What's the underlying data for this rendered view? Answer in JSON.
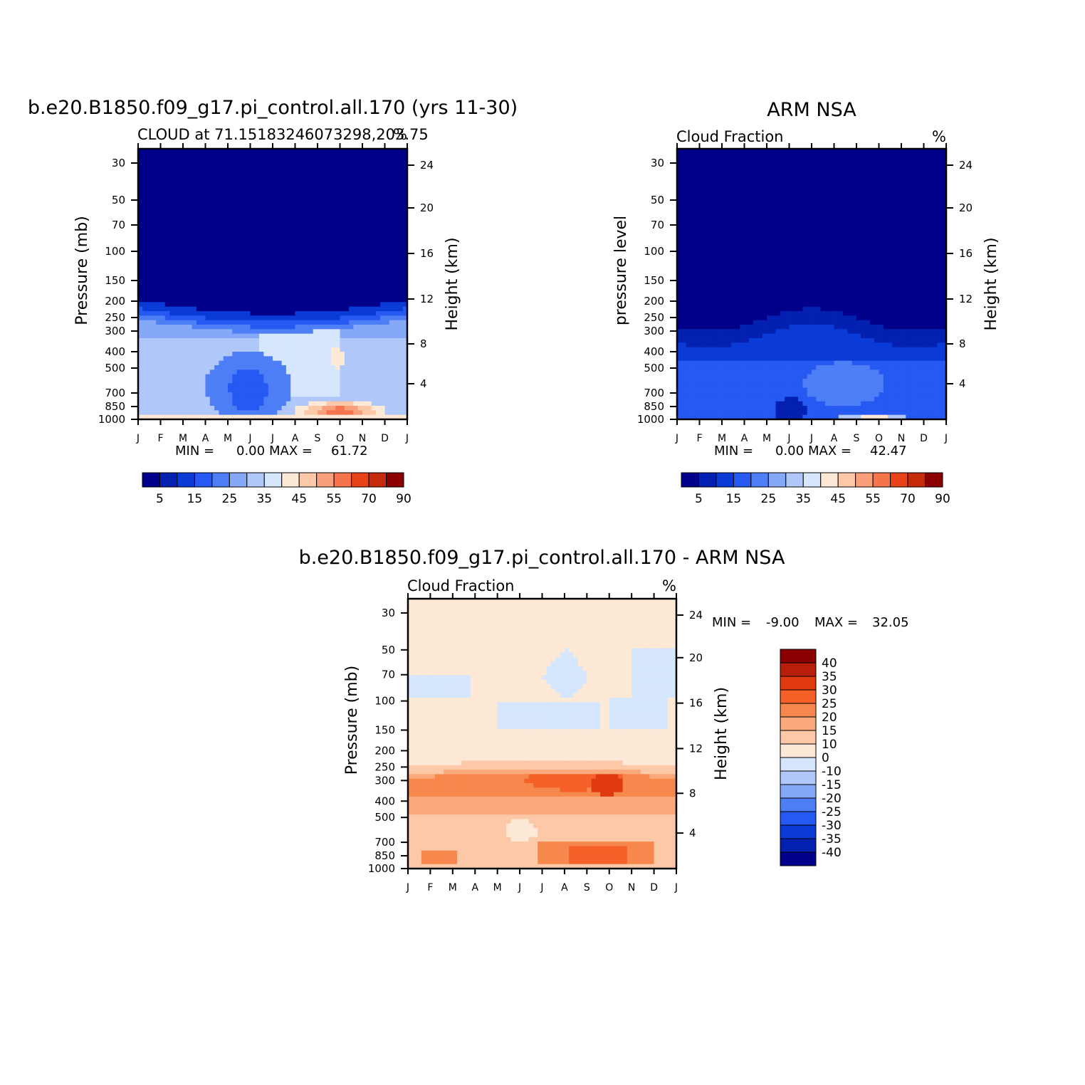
{
  "chart_data": [
    {
      "type": "heatmap",
      "title": "b.e20.B1850.f09_g17.pi_control.all.170 (yrs 11-30)",
      "subtitle_left": "CLOUD at 71.15183246073298,203.75",
      "subtitle_right": "%",
      "ylabel": "Pressure (mb)",
      "y2label": "Height (km)",
      "x": [
        "J",
        "F",
        "M",
        "A",
        "M",
        "J",
        "J",
        "A",
        "S",
        "O",
        "N",
        "D",
        "J"
      ],
      "y_ticks": [
        "30",
        "50",
        "70",
        "100",
        "150",
        "200",
        "250",
        "300",
        "400",
        "500",
        "700",
        "850",
        "1000"
      ],
      "y2_ticks": [
        "24",
        "20",
        "16",
        "12",
        "8",
        "4"
      ],
      "min_label": "MIN =",
      "min_value": "0.00",
      "max_label": "MAX =",
      "max_value": "61.72",
      "colorbar_labels": [
        "5",
        "15",
        "25",
        "35",
        "45",
        "55",
        "70",
        "90"
      ],
      "zlim": [
        0,
        100
      ]
    },
    {
      "type": "heatmap",
      "title": "ARM NSA",
      "subtitle_left": "Cloud Fraction",
      "subtitle_right": "%",
      "ylabel": "pressure level",
      "y2label": "Height (km)",
      "x": [
        "J",
        "F",
        "M",
        "A",
        "M",
        "J",
        "J",
        "A",
        "S",
        "O",
        "N",
        "D",
        "J"
      ],
      "y_ticks": [
        "30",
        "50",
        "70",
        "100",
        "150",
        "200",
        "250",
        "300",
        "400",
        "500",
        "700",
        "850",
        "1000"
      ],
      "y2_ticks": [
        "24",
        "20",
        "16",
        "12",
        "8",
        "4"
      ],
      "min_label": "MIN =",
      "min_value": "0.00",
      "max_label": "MAX =",
      "max_value": "42.47",
      "colorbar_labels": [
        "5",
        "15",
        "25",
        "35",
        "45",
        "55",
        "70",
        "90"
      ],
      "zlim": [
        0,
        100
      ]
    },
    {
      "type": "heatmap",
      "title": "b.e20.B1850.f09_g17.pi_control.all.170 - ARM NSA",
      "subtitle_left": "Cloud Fraction",
      "subtitle_right": "%",
      "ylabel": "Pressure (mb)",
      "y2label": "Height (km)",
      "x": [
        "J",
        "F",
        "M",
        "A",
        "M",
        "J",
        "J",
        "A",
        "S",
        "O",
        "N",
        "D",
        "J"
      ],
      "y_ticks": [
        "30",
        "50",
        "70",
        "100",
        "150",
        "200",
        "250",
        "300",
        "400",
        "500",
        "700",
        "850",
        "1000"
      ],
      "y2_ticks": [
        "24",
        "20",
        "16",
        "12",
        "8",
        "4"
      ],
      "min_label": "MIN =",
      "min_value": "-9.00",
      "max_label": "MAX =",
      "max_value": "32.05",
      "colorbar_labels": [
        "40",
        "35",
        "30",
        "25",
        "20",
        "15",
        "10",
        "0",
        "-10",
        "-15",
        "-20",
        "-25",
        "-30",
        "-35",
        "-40"
      ],
      "zlim": [
        -40,
        40
      ]
    }
  ],
  "colors": {
    "abs_scale": [
      "#00008b",
      "#0320b0",
      "#0a3bd6",
      "#2559f2",
      "#4d7ef5",
      "#85a8f7",
      "#b0c7fa",
      "#d5e6fd",
      "#fee8d6",
      "#fcc8a8",
      "#f9a07a",
      "#f6744c",
      "#e84318",
      "#c52a0a",
      "#8a0000"
    ],
    "diff_scale": [
      "#8a0000",
      "#b81e0a",
      "#e23a10",
      "#f6612a",
      "#f7884d",
      "#f9a97b",
      "#fcc8a8",
      "#fee8d6",
      "#d5e6fd",
      "#b0c7fa",
      "#85a8f7",
      "#4d7ef5",
      "#2559f2",
      "#0a3bd6",
      "#0320b0",
      "#00008b"
    ]
  }
}
